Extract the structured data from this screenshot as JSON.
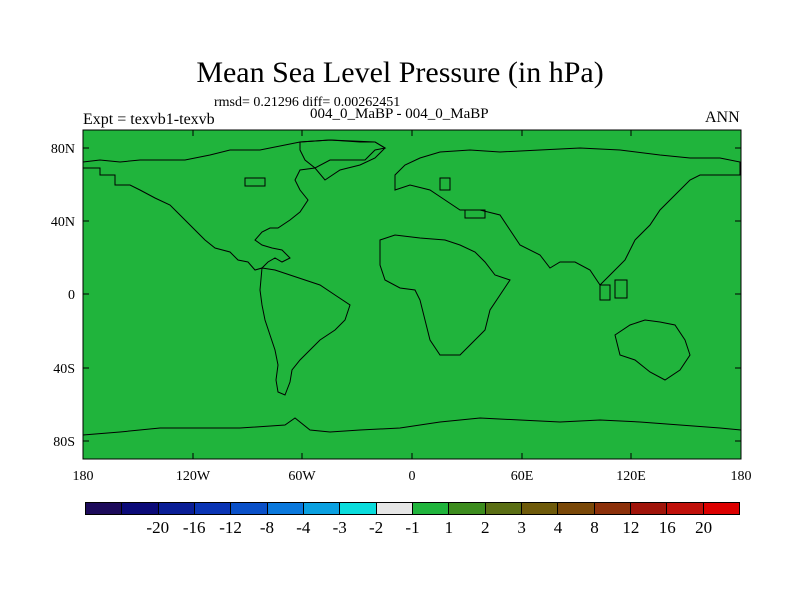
{
  "title": "Mean Sea Level Pressure (in hPa)",
  "stats": "rmsd= 0.21296 diff= 0.00262451",
  "left_label": "Expt = texvb1-texvb",
  "center_label": "004_0_MaBP - 004_0_MaBP",
  "right_label": "ANN",
  "map": {
    "fill_color": "#20b43c",
    "lat_ticks": [
      "80N",
      "40N",
      "0",
      "40S",
      "80S"
    ],
    "lon_ticks": [
      "180",
      "120W",
      "60W",
      "0",
      "60E",
      "120E",
      "180"
    ]
  },
  "colorbar": {
    "colors": [
      "#1c0a5a",
      "#0b0a78",
      "#0a1e96",
      "#0a34b4",
      "#0a50c8",
      "#0a78dc",
      "#0aa0e0",
      "#0adcdc",
      "#e6e6e6",
      "#20b43c",
      "#3c8c1e",
      "#5a6e14",
      "#6e5a0a",
      "#7a4808",
      "#8c300a",
      "#a0140a",
      "#c0100a",
      "#dc0000"
    ],
    "labels": [
      "-20",
      "-16",
      "-12",
      "-8",
      "-4",
      "-3",
      "-2",
      "-1",
      "1",
      "2",
      "3",
      "4",
      "8",
      "12",
      "16",
      "20"
    ]
  }
}
